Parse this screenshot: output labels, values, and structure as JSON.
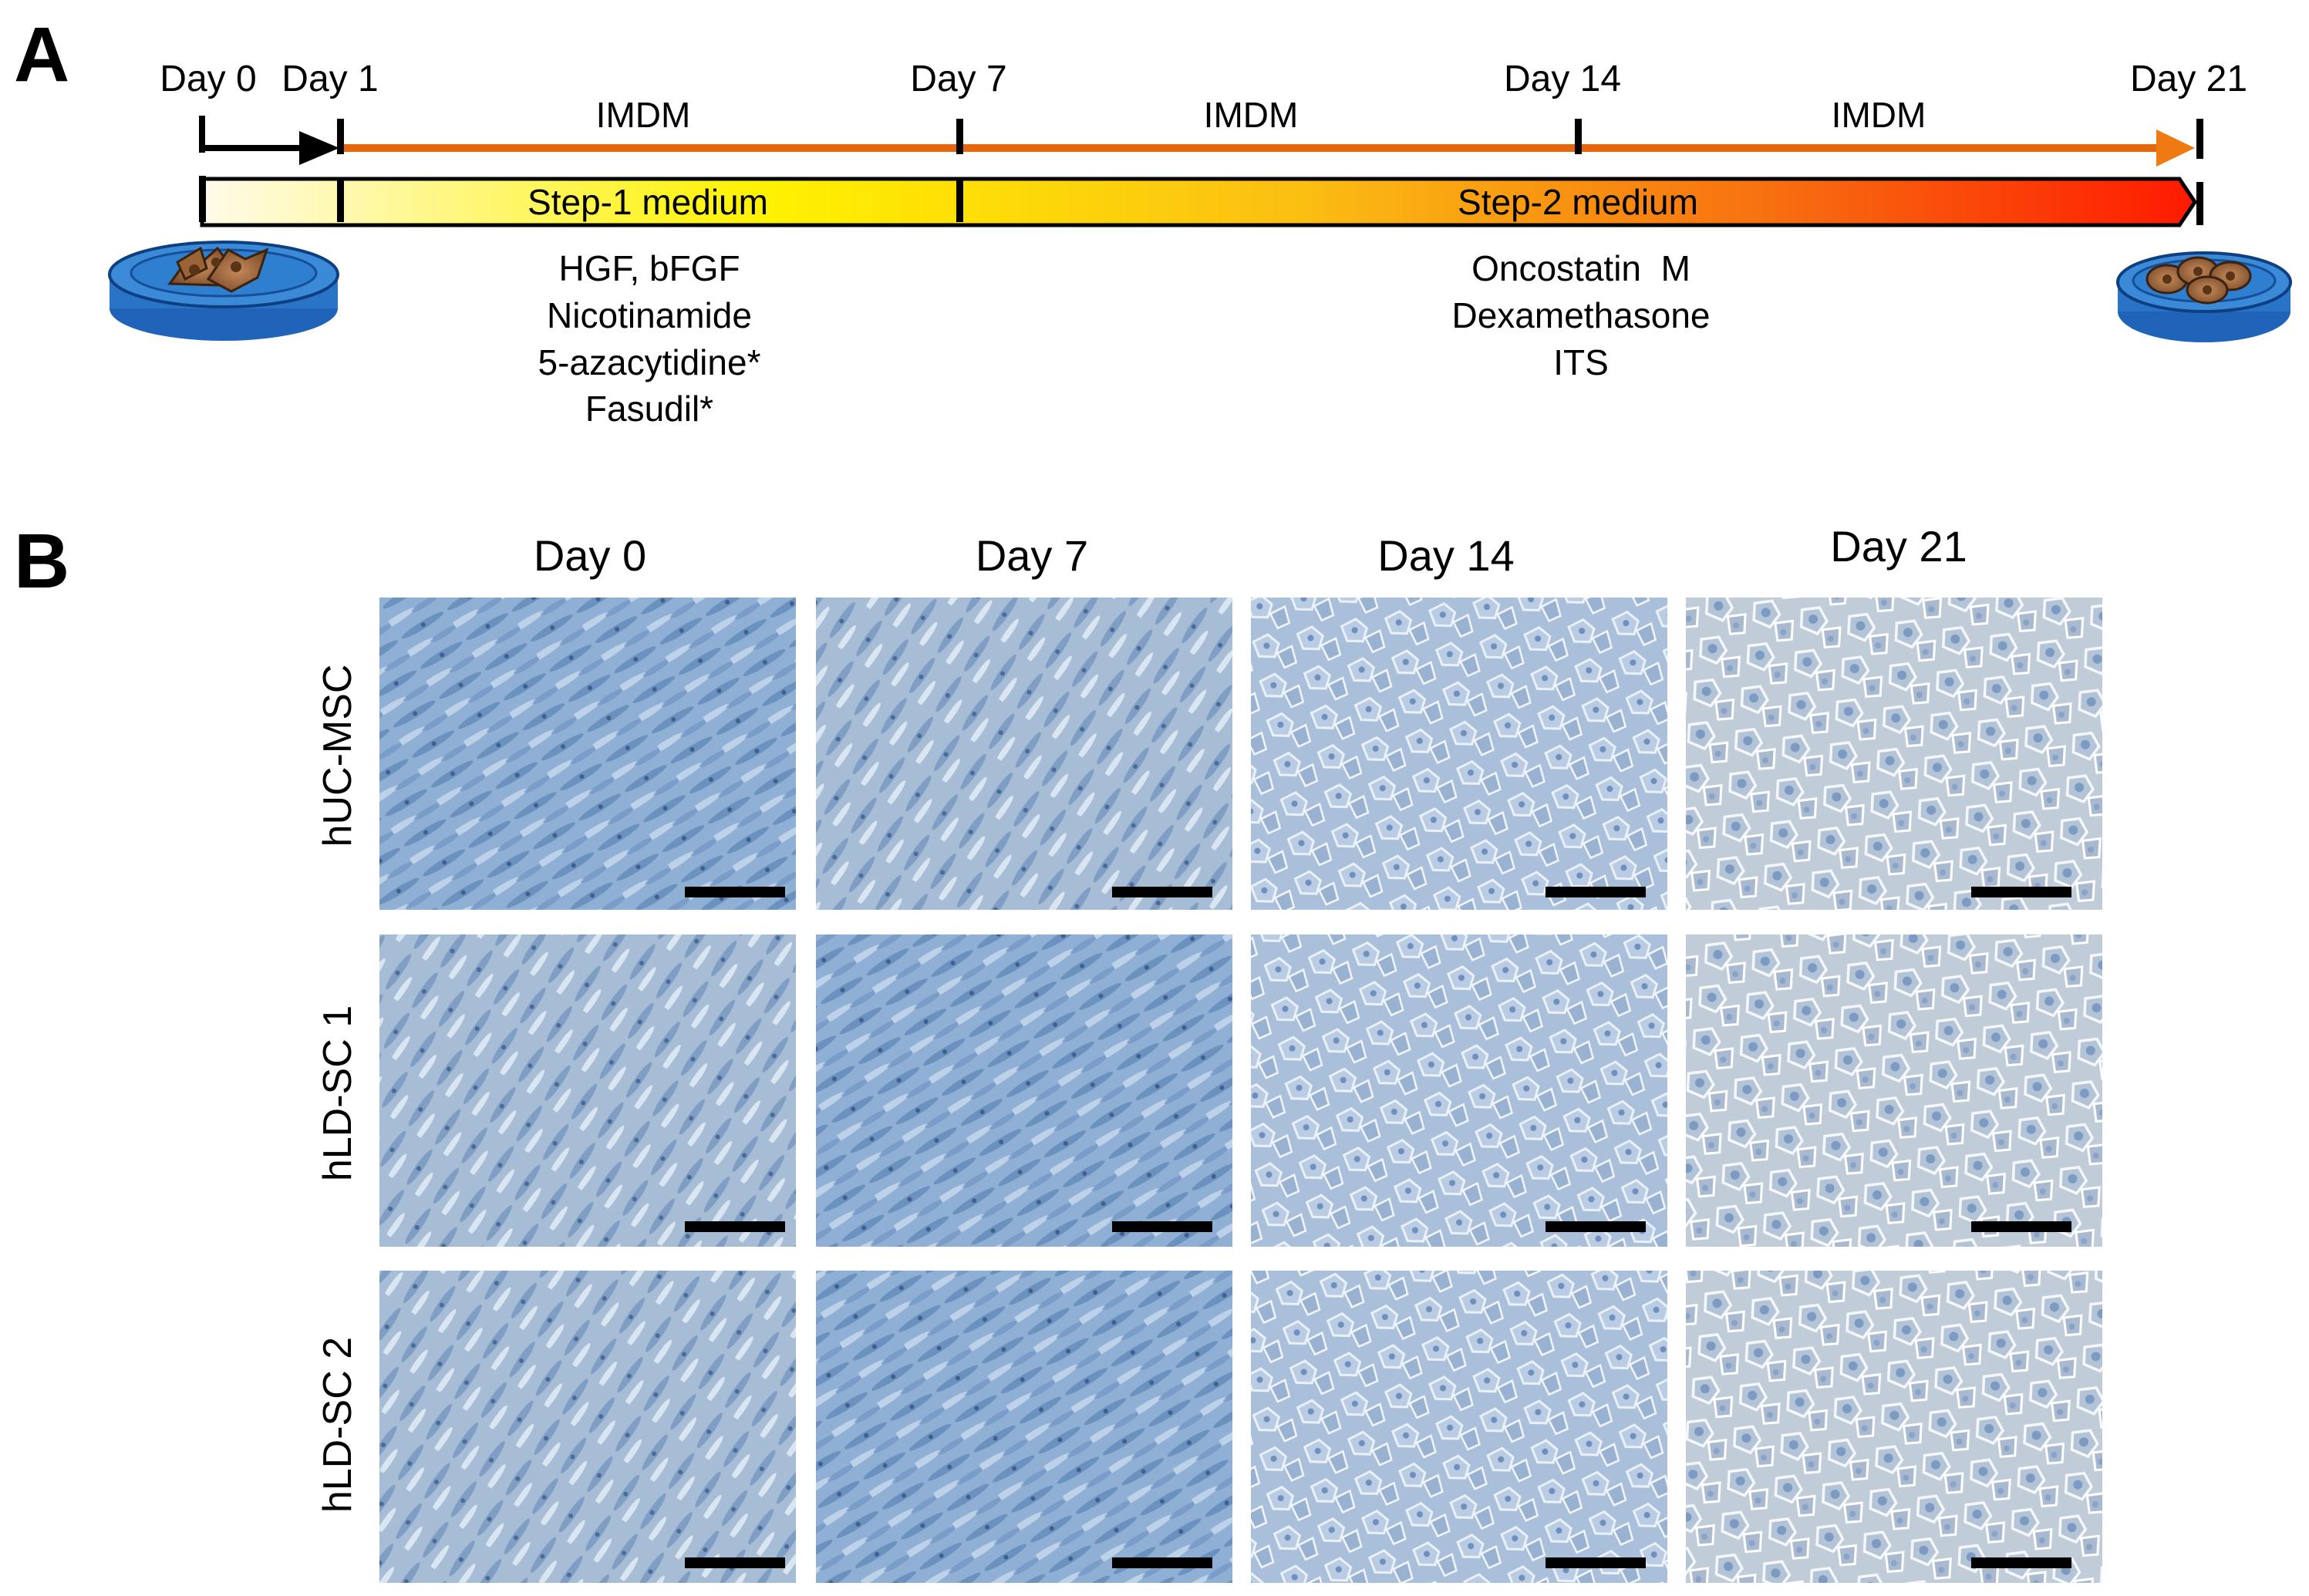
{
  "panel_a": {
    "label": "A",
    "day_labels": [
      "Day 0",
      "Day 1",
      "Day 7",
      "Day 14",
      "Day 21"
    ],
    "media_labels": [
      "IMDM",
      "IMDM",
      "IMDM"
    ],
    "step1_label": "Step-1 medium",
    "step2_label": "Step-2 medium",
    "step1_agents": [
      "HGF, bFGF",
      "Nicotinamide",
      "5-azacytidine*",
      "Fasudil*"
    ],
    "step2_agents": [
      "Oncostatin  M",
      "Dexamethasone",
      "ITS"
    ],
    "colors": {
      "imdm_arrow": "#e8650c",
      "gradient_start": "#fffbe8",
      "gradient_mid": "#fff200",
      "gradient_orange": "#f7a21a",
      "gradient_end": "#ff1a00"
    }
  },
  "panel_b": {
    "label": "B",
    "columns": [
      "Day 0",
      "Day 7",
      "Day 14",
      "Day 21"
    ],
    "rows": [
      "hUC-MSC",
      "hLD-SC 1",
      "hLD-SC 2"
    ],
    "micrograph_tint": "#9fb6d2"
  }
}
